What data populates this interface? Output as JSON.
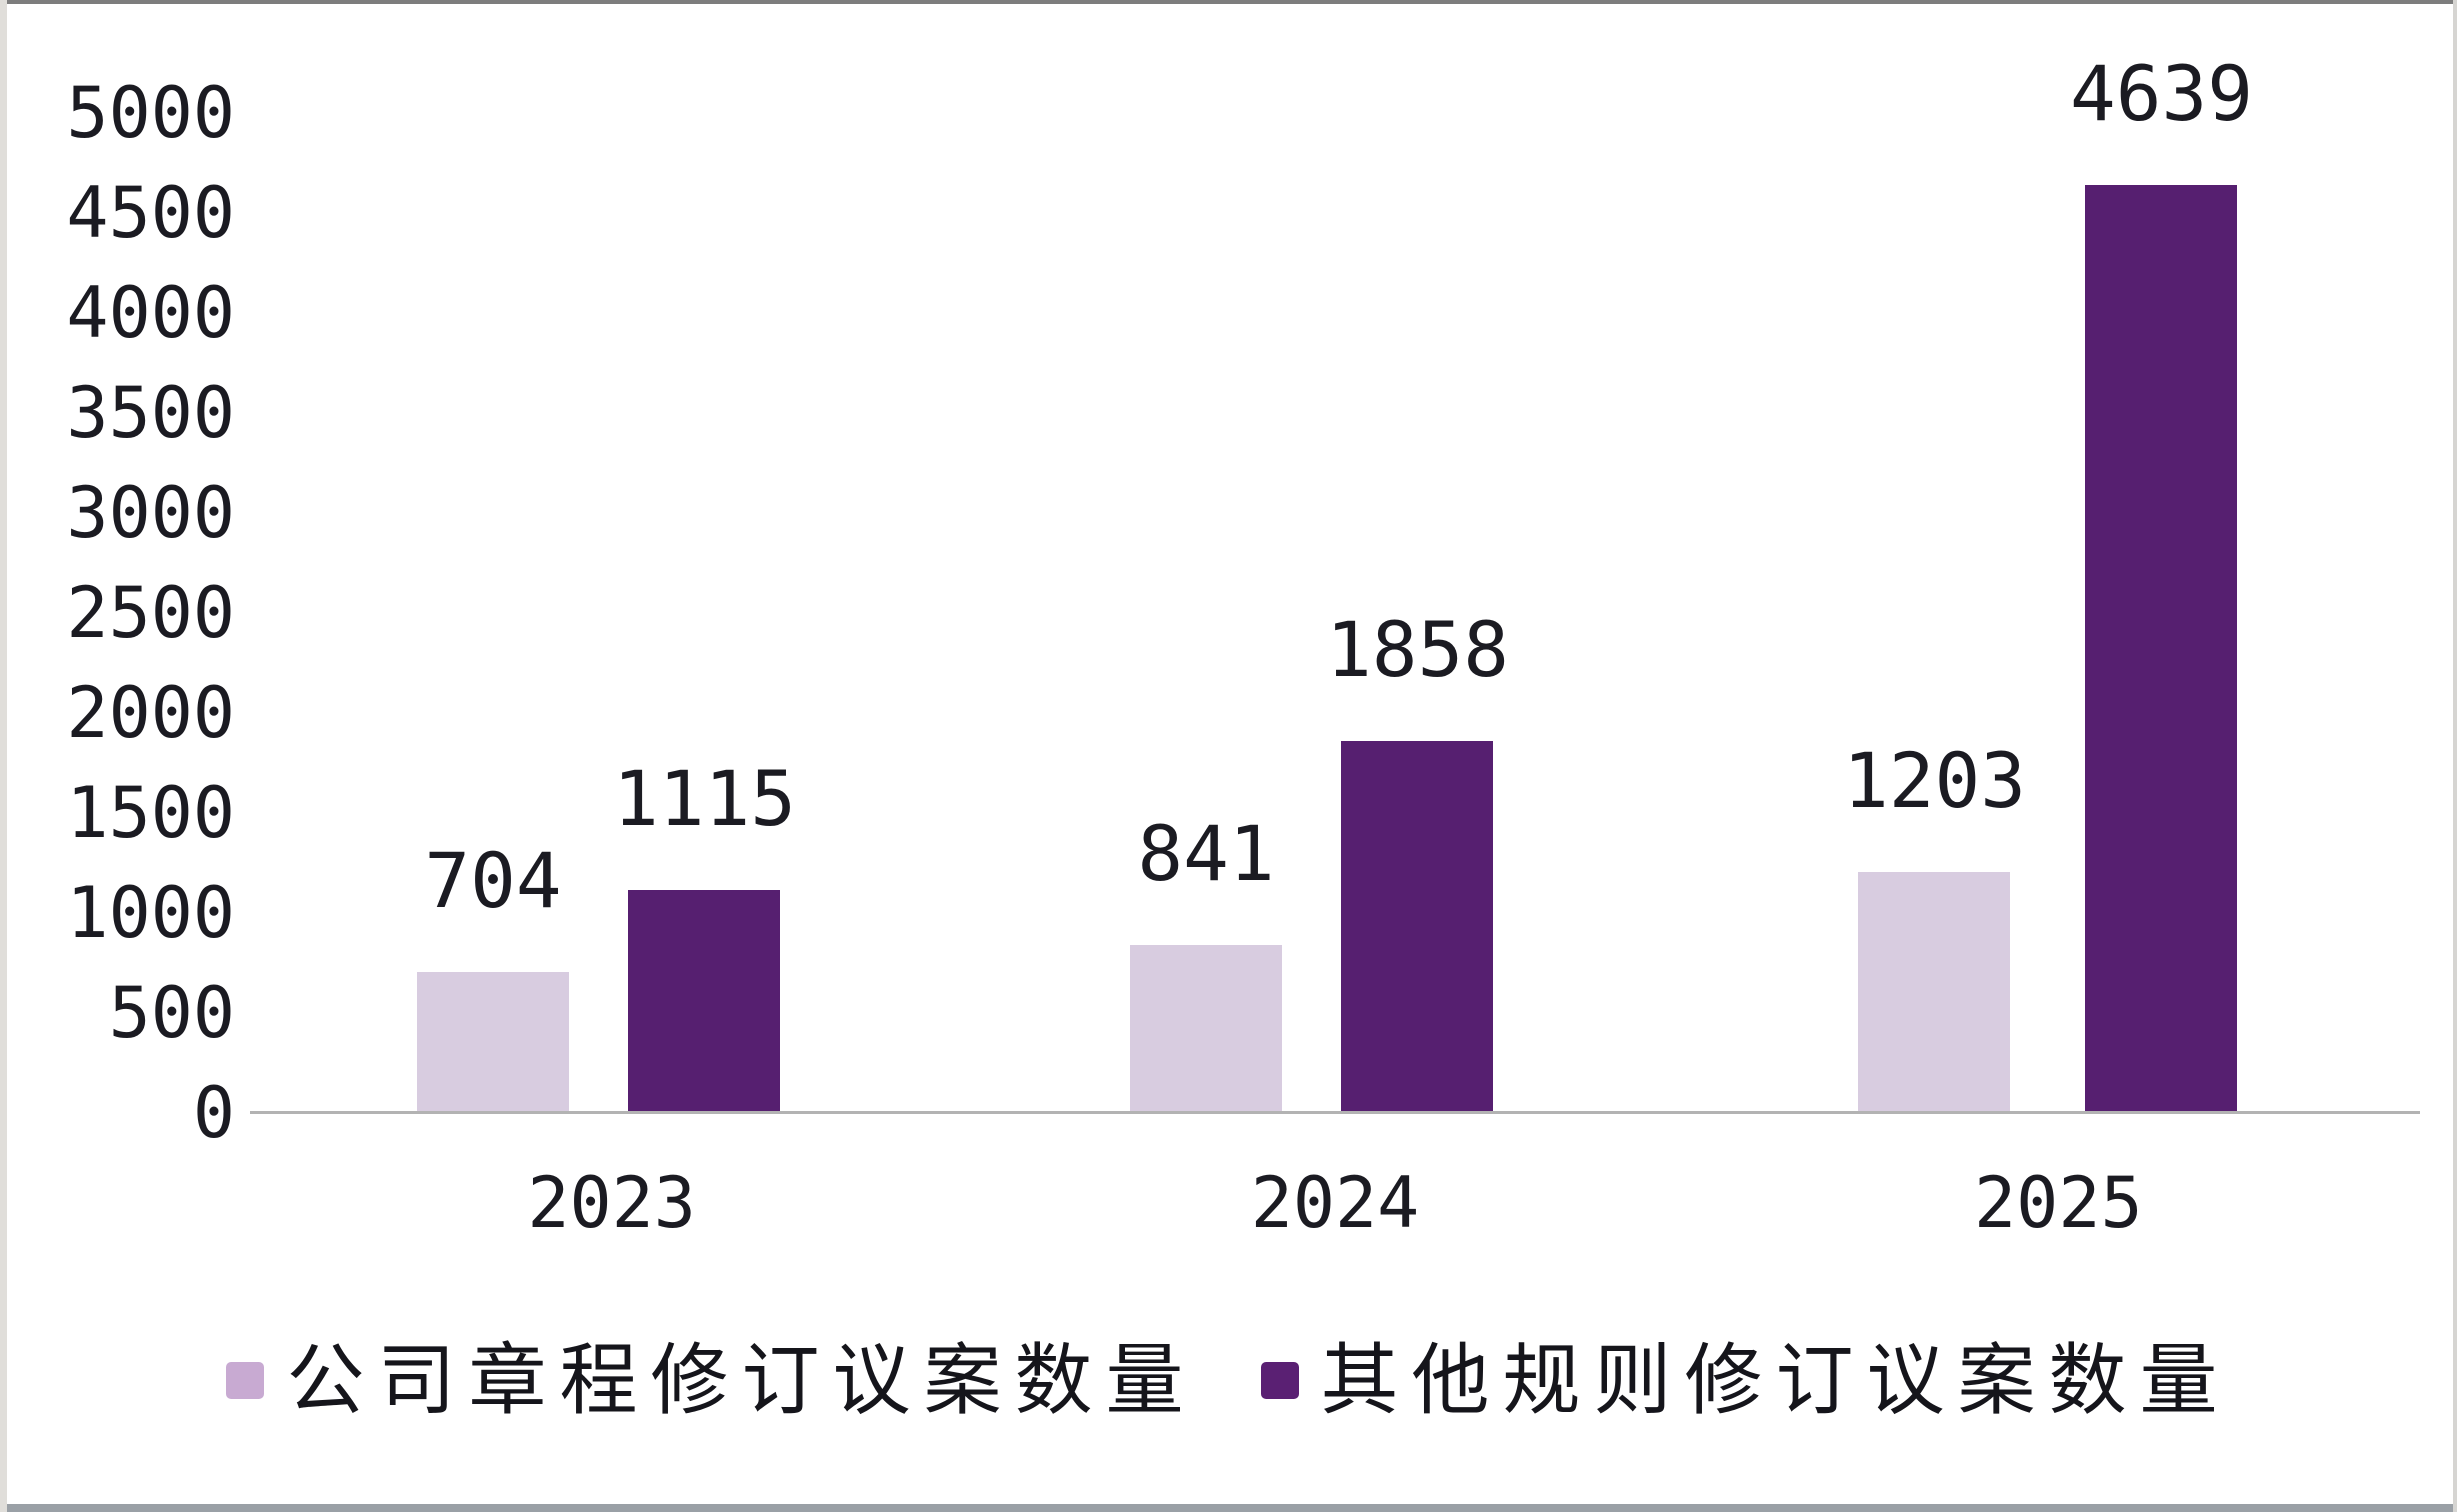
{
  "chart_data": {
    "type": "bar",
    "title": "",
    "xlabel": "",
    "ylabel": "",
    "categories": [
      "2023",
      "2024",
      "2025"
    ],
    "series": [
      {
        "name": "公司章程修订议案数量",
        "color": "#d8cce0",
        "swatch_color": "#c8aad2",
        "values": [
          704,
          841,
          1203
        ]
      },
      {
        "name": "其他规则修订议案数量",
        "color": "#561f70",
        "swatch_color": "#5a2073",
        "values": [
          1115,
          1858,
          4639
        ]
      }
    ],
    "ylim": [
      0,
      5000
    ],
    "y_ticks": [
      0,
      500,
      1000,
      1500,
      2000,
      2500,
      3000,
      3500,
      4000,
      4500,
      5000
    ],
    "grid": false,
    "data_labels": true,
    "legend_position": "bottom"
  },
  "style": {
    "axis_line_color": "#b3b3b3",
    "text_color": "#1b1b22",
    "background": "#ffffff"
  }
}
